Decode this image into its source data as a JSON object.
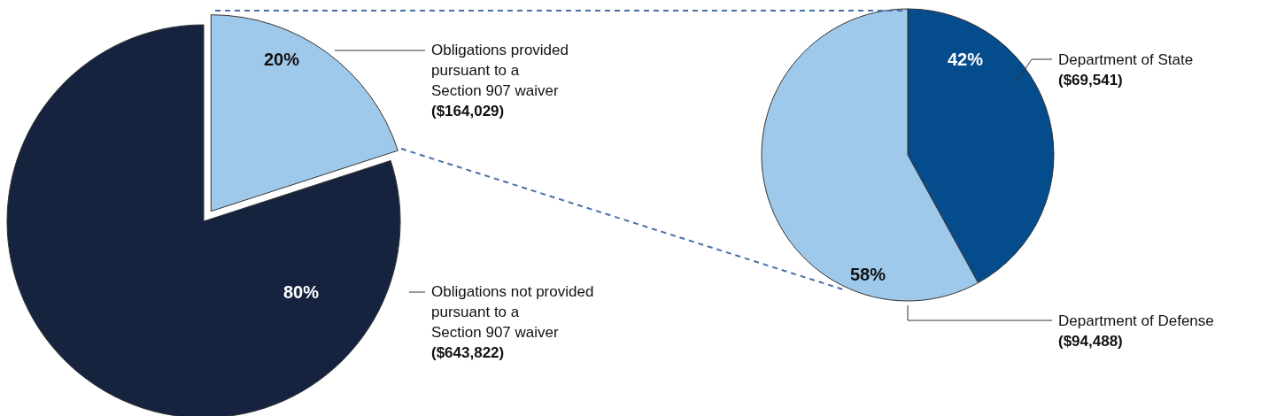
{
  "chart_data": [
    {
      "type": "pie",
      "categories": [
        "Obligations provided\npursuant to a\nSection 907 waiver\n($164,029)",
        "Obligations not provided\npursuant to a\nSection 907 waiver\n($643,822)"
      ],
      "values": [
        20,
        80
      ],
      "colors": [
        "#9fc9ea",
        "#16233f"
      ],
      "value_labels": [
        "20%",
        "80%"
      ]
    },
    {
      "type": "pie",
      "categories": [
        "Department of State\n($69,541)",
        "Department of Defense\n($94,488)"
      ],
      "values": [
        42,
        58
      ],
      "colors": [
        "#054c8c",
        "#9fc9ea"
      ],
      "value_labels": [
        "42%",
        "58%"
      ]
    }
  ]
}
